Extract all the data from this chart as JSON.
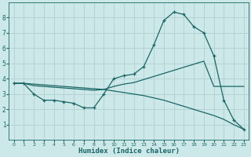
{
  "xlabel": "Humidex (Indice chaleur)",
  "bg_color": "#cce8e8",
  "grid_color": "#b0d0d0",
  "line_color": "#1a6666",
  "xlim": [
    -0.5,
    23.5
  ],
  "ylim": [
    0,
    9
  ],
  "xticks": [
    0,
    1,
    2,
    3,
    4,
    5,
    6,
    7,
    8,
    9,
    10,
    11,
    12,
    13,
    14,
    15,
    16,
    17,
    18,
    19,
    20,
    21,
    22,
    23
  ],
  "yticks": [
    1,
    2,
    3,
    4,
    5,
    6,
    7,
    8
  ],
  "line1_x": [
    0,
    1,
    2,
    3,
    4,
    5,
    6,
    7,
    8,
    9,
    10,
    11,
    12,
    13,
    14,
    15,
    16,
    17,
    18,
    19,
    20,
    21,
    22,
    23
  ],
  "line1_y": [
    3.7,
    3.7,
    3.0,
    2.6,
    2.6,
    2.5,
    2.4,
    2.1,
    2.1,
    3.0,
    4.0,
    4.2,
    4.3,
    4.8,
    6.2,
    7.8,
    8.35,
    8.2,
    7.4,
    7.0,
    5.5,
    2.6,
    1.3,
    0.7
  ],
  "line2_x": [
    0,
    1,
    2,
    3,
    4,
    5,
    6,
    7,
    8,
    9,
    10,
    11,
    12,
    13,
    14,
    15,
    16,
    17,
    18,
    19,
    20,
    21,
    22,
    23
  ],
  "line2_y": [
    3.7,
    3.7,
    3.55,
    3.5,
    3.45,
    3.4,
    3.35,
    3.3,
    3.25,
    3.3,
    3.5,
    3.65,
    3.75,
    3.95,
    4.15,
    4.35,
    4.55,
    4.75,
    4.95,
    5.15,
    3.5,
    3.5,
    3.5,
    3.5
  ],
  "line3_x": [
    0,
    1,
    2,
    3,
    4,
    5,
    6,
    7,
    8,
    9,
    10,
    11,
    12,
    13,
    14,
    15,
    16,
    17,
    18,
    19,
    20,
    21,
    22,
    23
  ],
  "line3_y": [
    3.7,
    3.7,
    3.65,
    3.6,
    3.55,
    3.5,
    3.45,
    3.4,
    3.35,
    3.3,
    3.2,
    3.1,
    3.0,
    2.9,
    2.75,
    2.6,
    2.4,
    2.2,
    2.0,
    1.8,
    1.6,
    1.35,
    1.0,
    0.7
  ]
}
